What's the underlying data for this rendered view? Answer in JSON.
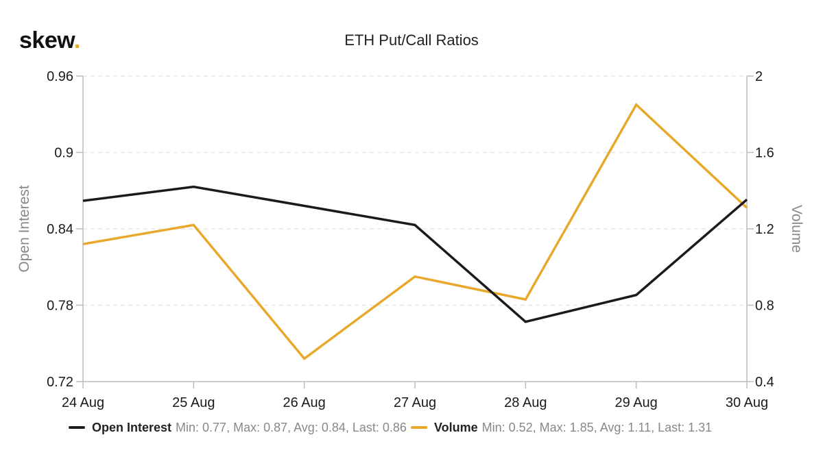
{
  "logo": {
    "text": "skew",
    "dot": "."
  },
  "colors": {
    "open_interest": "#1b1b1f",
    "volume": "#e8a92a",
    "grid": "#e6e6e6"
  },
  "legend": [
    {
      "name": "Open Interest",
      "stats": "Min: 0.77, Max: 0.87, Avg: 0.84, Last: 0.86"
    },
    {
      "name": "Volume",
      "stats": "Min: 0.52, Max: 1.85, Avg: 1.11, Last: 1.31"
    }
  ],
  "chart_data": {
    "type": "line",
    "title": "ETH Put/Call Ratios",
    "categories": [
      "24 Aug",
      "25 Aug",
      "26 Aug",
      "27 Aug",
      "28 Aug",
      "29 Aug",
      "30 Aug"
    ],
    "y_left": {
      "label": "Open Interest",
      "min": 0.72,
      "max": 0.96,
      "ticks": [
        "0.72",
        "0.78",
        "0.84",
        "0.9",
        "0.96"
      ]
    },
    "y_right": {
      "label": "Volume",
      "min": 0.4,
      "max": 2.0,
      "ticks": [
        "0.4",
        "0.8",
        "1.2",
        "1.6",
        "2"
      ]
    },
    "grid": true,
    "legend_position": "bottom",
    "series": [
      {
        "name": "Open Interest",
        "axis": "left",
        "values": [
          0.862,
          0.873,
          0.858,
          0.843,
          0.767,
          0.788,
          0.863
        ]
      },
      {
        "name": "Volume",
        "axis": "right",
        "values": [
          1.12,
          1.22,
          0.52,
          0.95,
          0.83,
          1.85,
          1.31
        ]
      }
    ]
  }
}
